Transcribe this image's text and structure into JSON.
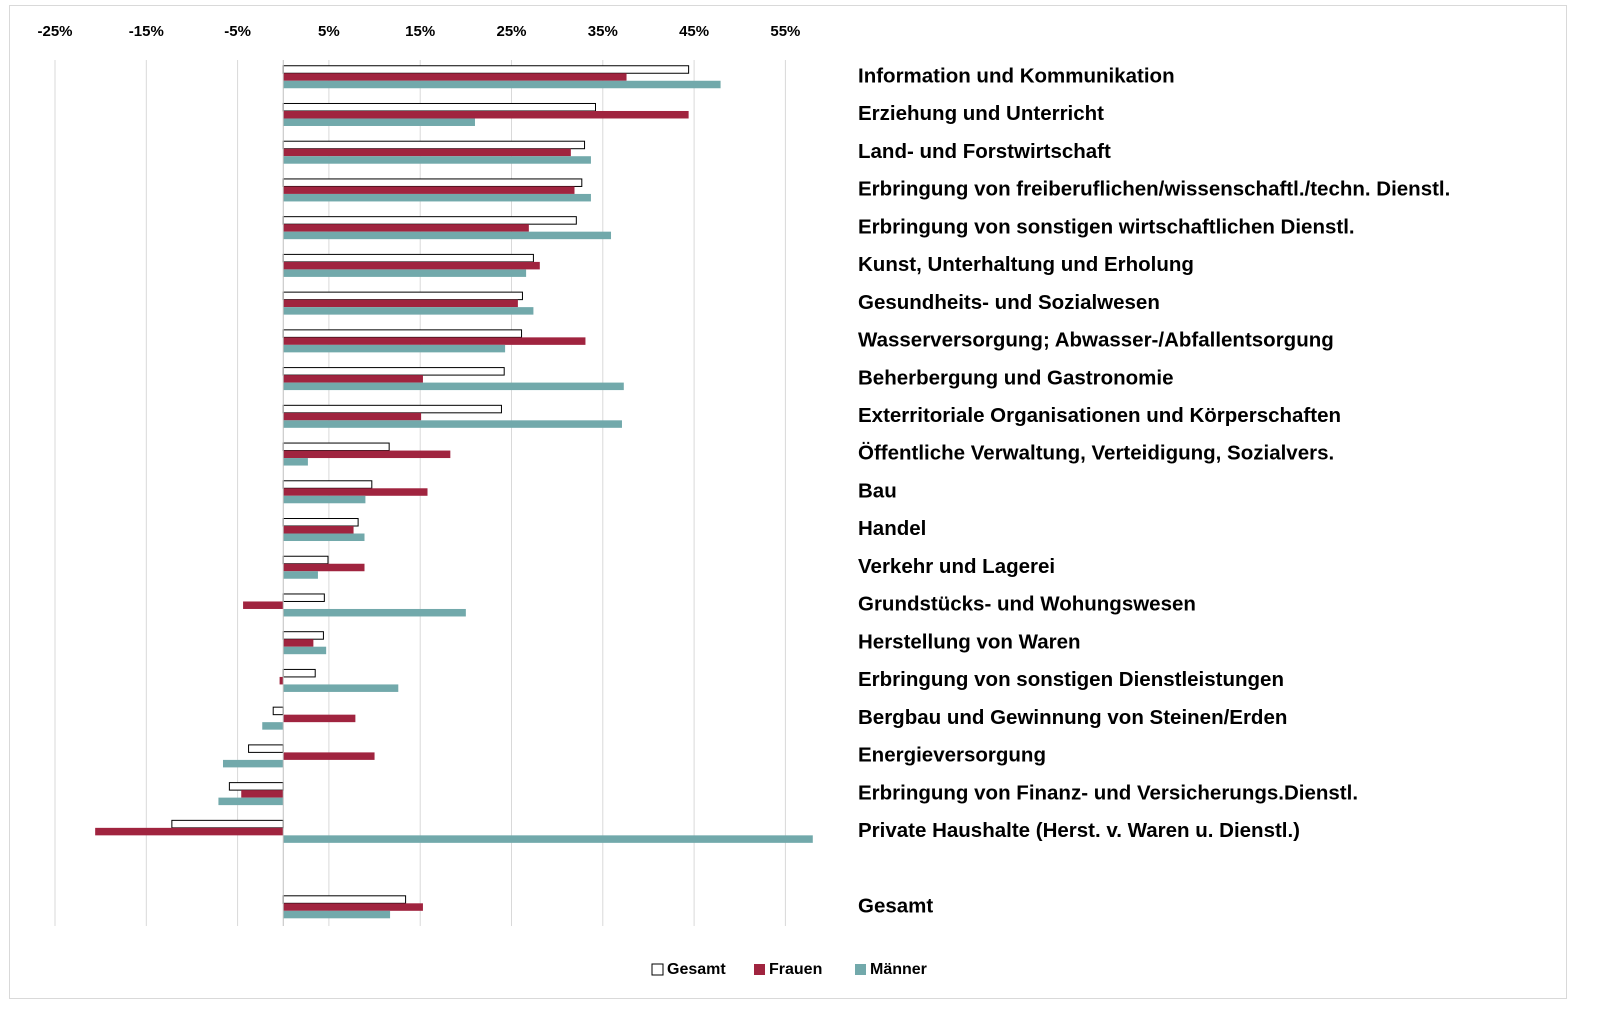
{
  "chart_data": {
    "type": "hbar",
    "categories": [
      "Information und Kommunikation",
      "Erziehung und Unterricht",
      "Land- und Forstwirtschaft",
      "Erbringung von freiberuflichen/wissenschaftl./techn. Dienstl.",
      "Erbringung von sonstigen wirtschaftlichen Dienstl.",
      "Kunst, Unterhaltung und Erholung",
      "Gesundheits- und Sozialwesen",
      "Wasserversorgung; Abwasser-/Abfallentsorgung",
      "Beherbergung und Gastronomie",
      "Exterritoriale Organisationen und Körperschaften",
      "Öffentliche Verwaltung, Verteidigung, Sozialvers.",
      "Bau",
      "Handel",
      "Verkehr und Lagerei",
      "Grundstücks- und Wohungswesen",
      "Herstellung von Waren",
      "Erbringung von sonstigen Dienstleistungen",
      "Bergbau und Gewinnung von Steinen/Erden",
      "Energieversorgung",
      "Erbringung von Finanz- und Versicherungs.Dienstl.",
      "Private Haushalte (Herst. v. Waren u. Dienstl.)",
      null,
      "Gesamt"
    ],
    "series": [
      {
        "name": "Gesamt",
        "color": "#ffffff",
        "values": [
          44.4,
          34.2,
          33.0,
          32.7,
          32.1,
          27.4,
          26.2,
          26.1,
          24.2,
          23.9,
          11.6,
          9.7,
          8.2,
          4.9,
          4.5,
          4.4,
          3.5,
          -1.1,
          -3.8,
          -5.9,
          -12.2,
          null,
          13.4
        ]
      },
      {
        "name": "Frauen",
        "color": "#a0243f",
        "values": [
          37.6,
          44.4,
          31.5,
          31.9,
          26.9,
          28.1,
          25.7,
          33.1,
          15.3,
          15.1,
          18.3,
          15.8,
          7.7,
          8.9,
          -4.4,
          3.3,
          -0.4,
          7.9,
          10.0,
          -4.6,
          -20.6,
          null,
          15.3
        ]
      },
      {
        "name": "Männer",
        "color": "#72a9ab",
        "values": [
          47.9,
          21.0,
          33.7,
          33.7,
          35.9,
          26.6,
          27.4,
          24.3,
          37.3,
          37.1,
          2.7,
          9.0,
          8.9,
          3.8,
          20.0,
          4.7,
          12.6,
          -2.3,
          -6.6,
          -7.1,
          58.0,
          null,
          11.7
        ]
      }
    ],
    "xlim": [
      -25,
      60
    ],
    "xticks": [
      {
        "value": -25,
        "label": "-25%"
      },
      {
        "value": -15,
        "label": "-15%"
      },
      {
        "value": -5,
        "label": "-5%"
      },
      {
        "value": 5,
        "label": "5%"
      },
      {
        "value": 15,
        "label": "15%"
      },
      {
        "value": 25,
        "label": "25%"
      },
      {
        "value": 35,
        "label": "35%"
      },
      {
        "value": 45,
        "label": "45%"
      },
      {
        "value": 55,
        "label": "55%"
      }
    ],
    "grid": true,
    "legend": "bottom"
  }
}
